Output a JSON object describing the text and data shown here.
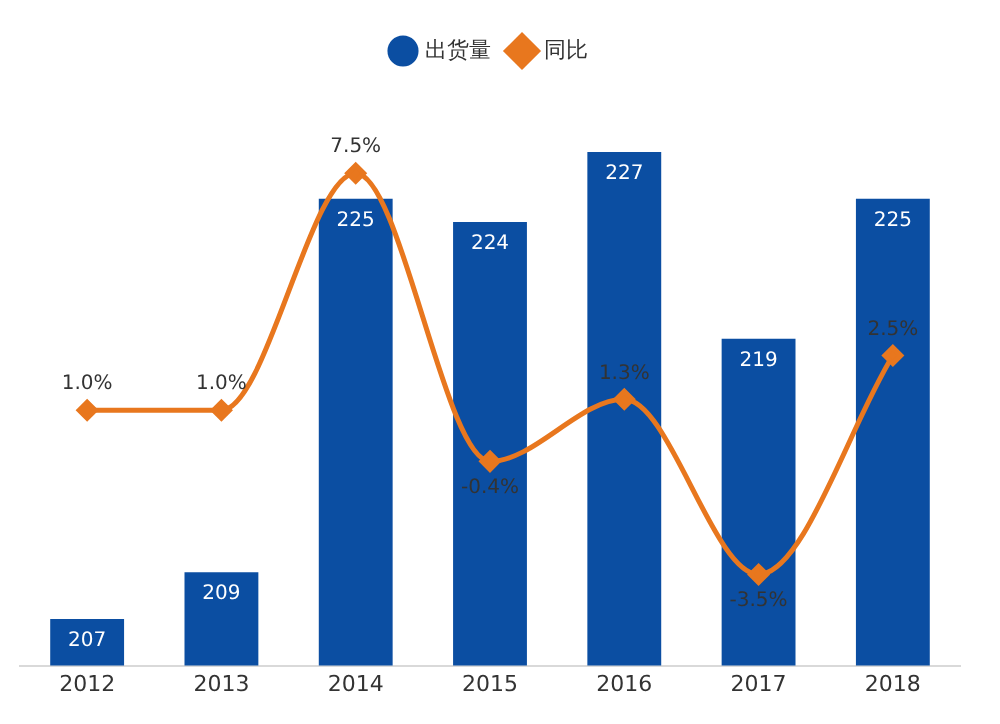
{
  "chart_data": {
    "type": "bar",
    "categories": [
      "2012",
      "2013",
      "2014",
      "2015",
      "2016",
      "2017",
      "2018"
    ],
    "series": [
      {
        "name": "出货量",
        "color": "#0b4ea2",
        "values": [
          207,
          209,
          225,
          224,
          227,
          219,
          225
        ],
        "value_labels": [
          "207",
          "209",
          "225",
          "224",
          "227",
          "219",
          "225"
        ]
      },
      {
        "name": "同比",
        "type": "line",
        "axis": "y2",
        "color": "#e8771e",
        "marker": "diamond",
        "values": [
          1.0,
          1.0,
          7.5,
          -0.4,
          1.3,
          -3.5,
          2.5
        ],
        "value_labels": [
          "1.0%",
          "1.0%",
          "7.5%",
          "-0.4%",
          "1.3%",
          "-3.5%",
          "2.5%"
        ]
      }
    ],
    "tick_labels": "x",
    "legend": "top",
    "grid": false
  }
}
